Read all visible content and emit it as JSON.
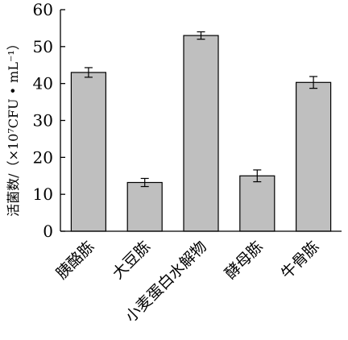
{
  "chart_data": {
    "type": "bar",
    "title": "",
    "xlabel": "",
    "ylabel": "活菌数/（×10⁷CFU • mL⁻¹）",
    "ylim": [
      0,
      60
    ],
    "yticks": [
      0,
      10,
      20,
      30,
      40,
      50,
      60
    ],
    "grid": false,
    "bar_color": "#bfbfbf",
    "categories": [
      "胰酪胨",
      "大豆胨",
      "小麦蛋白水解物",
      "酵母胨",
      "牛骨胨"
    ],
    "values": [
      43,
      13.2,
      53,
      15,
      40.3
    ],
    "errors": [
      1.3,
      1.1,
      1.0,
      1.6,
      1.6
    ]
  }
}
